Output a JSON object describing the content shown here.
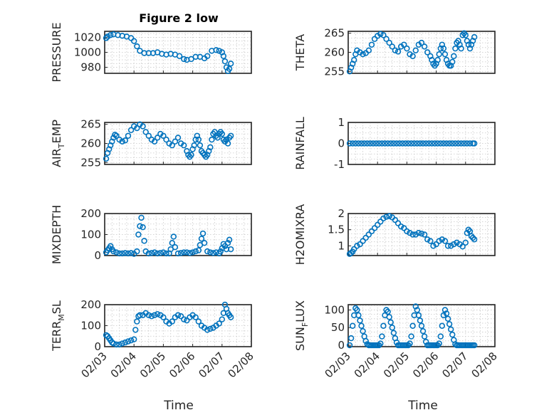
{
  "figure": {
    "title": "Figure 2 low",
    "marker_color": "#0072BD",
    "xlabel": "Time",
    "xtick_labels": [
      "02/03",
      "02/04",
      "02/05",
      "02/06",
      "02/07",
      "02/08"
    ]
  },
  "chart_data": [
    {
      "type": "scatter",
      "ylabel": "PRESSURE",
      "position": "top-left",
      "xlim": [
        3,
        8
      ],
      "ylim": [
        972,
        1028
      ],
      "yticks": [
        980,
        1000,
        1020
      ],
      "x": [
        3.05,
        3.1,
        3.2,
        3.3,
        3.45,
        3.6,
        3.75,
        3.9,
        4.0,
        4.1,
        4.2,
        4.35,
        4.5,
        4.65,
        4.8,
        4.95,
        5.1,
        5.25,
        5.4,
        5.55,
        5.7,
        5.8,
        5.95,
        6.1,
        6.25,
        6.4,
        6.5,
        6.65,
        6.8,
        6.9,
        7.0,
        7.05,
        7.1,
        7.15,
        7.2,
        7.25,
        7.3
      ],
      "y": [
        1019,
        1021,
        1023,
        1024,
        1023,
        1022,
        1021,
        1019,
        1015,
        1008,
        1002,
        999,
        999,
        999,
        1000,
        998,
        997,
        998,
        997,
        995,
        991,
        990,
        991,
        994,
        994,
        992,
        995,
        1002,
        1003,
        1002,
        1000,
        995,
        988,
        980,
        975,
        978,
        985
      ]
    },
    {
      "type": "scatter",
      "ylabel": "THETA",
      "position": "top-right",
      "xlim": [
        3,
        8
      ],
      "ylim": [
        254.5,
        265.5
      ],
      "yticks": [
        255,
        260,
        265
      ],
      "x": [
        3.05,
        3.1,
        3.15,
        3.2,
        3.25,
        3.3,
        3.4,
        3.5,
        3.6,
        3.7,
        3.8,
        3.9,
        4.0,
        4.1,
        4.2,
        4.3,
        4.4,
        4.5,
        4.6,
        4.7,
        4.8,
        4.9,
        5.0,
        5.1,
        5.2,
        5.3,
        5.4,
        5.5,
        5.6,
        5.7,
        5.8,
        5.85,
        5.9,
        5.95,
        6.0,
        6.05,
        6.1,
        6.15,
        6.2,
        6.25,
        6.3,
        6.35,
        6.4,
        6.45,
        6.5,
        6.55,
        6.6,
        6.65,
        6.7,
        6.75,
        6.8,
        6.85,
        6.9,
        6.95,
        7.0,
        7.05,
        7.1,
        7.15,
        7.2,
        7.25,
        7.3
      ],
      "y": [
        255,
        256,
        257,
        258,
        259.5,
        260.5,
        260,
        259.5,
        259.8,
        260.5,
        262,
        263.5,
        264.3,
        264.8,
        264.5,
        263.5,
        262.5,
        261.5,
        260.5,
        260.2,
        261.5,
        262,
        261,
        259.5,
        259,
        260.5,
        262,
        262.5,
        261.5,
        260,
        259,
        258,
        257,
        256.5,
        257,
        258,
        259.5,
        261,
        262,
        261,
        259.5,
        258,
        257,
        256.5,
        256.5,
        257.5,
        259,
        261,
        262.5,
        263,
        262,
        261,
        264.5,
        265,
        264.5,
        263,
        262,
        261,
        262,
        263,
        264
      ]
    },
    {
      "type": "scatter",
      "ylabel": "AIR_T_EMP",
      "position": "middle-upper-left",
      "xlim": [
        3,
        8
      ],
      "ylim": [
        254.5,
        265.5
      ],
      "yticks": [
        255,
        260,
        265
      ],
      "x": [
        3.05,
        3.1,
        3.15,
        3.2,
        3.25,
        3.3,
        3.35,
        3.4,
        3.5,
        3.6,
        3.7,
        3.8,
        3.9,
        4.0,
        4.1,
        4.2,
        4.3,
        4.4,
        4.5,
        4.6,
        4.7,
        4.8,
        4.9,
        5.0,
        5.1,
        5.2,
        5.3,
        5.4,
        5.5,
        5.6,
        5.7,
        5.8,
        5.85,
        5.9,
        5.95,
        6.0,
        6.05,
        6.1,
        6.15,
        6.2,
        6.25,
        6.3,
        6.35,
        6.4,
        6.45,
        6.5,
        6.55,
        6.6,
        6.65,
        6.7,
        6.75,
        6.8,
        6.85,
        6.9,
        6.95,
        7.0,
        7.05,
        7.1,
        7.15,
        7.2,
        7.25,
        7.3
      ],
      "y": [
        256,
        257.5,
        258.5,
        259.5,
        260.5,
        261.5,
        262.3,
        262,
        261,
        260.5,
        260.8,
        262,
        263.5,
        264.5,
        264,
        265,
        264.5,
        263,
        262,
        261,
        260.5,
        261.5,
        262.5,
        262,
        261,
        260,
        259.5,
        260.5,
        261.5,
        260,
        259.5,
        258,
        257,
        256.5,
        257,
        258.5,
        259.5,
        261,
        262,
        261,
        259.5,
        258,
        257.5,
        257,
        256.5,
        257,
        258,
        259,
        261,
        262.5,
        263,
        262,
        261.5,
        262.5,
        263,
        262.5,
        261,
        260.5,
        261,
        260,
        261.5,
        262
      ]
    },
    {
      "type": "scatter",
      "ylabel": "RAINFALL",
      "position": "middle-upper-right",
      "xlim": [
        3,
        8
      ],
      "ylim": [
        -1,
        1
      ],
      "yticks": [
        -1,
        0,
        1
      ],
      "x": [
        3.05,
        3.15,
        3.25,
        3.35,
        3.45,
        3.55,
        3.65,
        3.75,
        3.85,
        3.95,
        4.05,
        4.15,
        4.25,
        4.35,
        4.45,
        4.55,
        4.65,
        4.75,
        4.85,
        4.95,
        5.05,
        5.15,
        5.25,
        5.35,
        5.45,
        5.55,
        5.65,
        5.75,
        5.85,
        5.95,
        6.05,
        6.15,
        6.25,
        6.35,
        6.45,
        6.55,
        6.65,
        6.75,
        6.85,
        6.95,
        7.05,
        7.15,
        7.25,
        7.3
      ],
      "y": [
        0,
        0,
        0,
        0,
        0,
        0,
        0,
        0,
        0,
        0,
        0,
        0,
        0,
        0,
        0,
        0,
        0,
        0,
        0,
        0,
        0,
        0,
        0,
        0,
        0,
        0,
        0,
        0,
        0,
        0,
        0,
        0,
        0,
        0,
        0,
        0,
        0,
        0,
        0,
        0,
        0,
        0,
        0,
        0
      ]
    },
    {
      "type": "scatter",
      "ylabel": "MIXDEPTH",
      "position": "middle-lower-left",
      "xlim": [
        3,
        8
      ],
      "ylim": [
        0,
        200
      ],
      "yticks": [
        0,
        100,
        200
      ],
      "x": [
        3.05,
        3.1,
        3.15,
        3.2,
        3.25,
        3.3,
        3.4,
        3.5,
        3.6,
        3.7,
        3.8,
        3.9,
        4.0,
        4.1,
        4.15,
        4.2,
        4.25,
        4.3,
        4.35,
        4.4,
        4.5,
        4.6,
        4.7,
        4.8,
        4.9,
        5.0,
        5.1,
        5.2,
        5.25,
        5.3,
        5.35,
        5.4,
        5.5,
        5.6,
        5.7,
        5.8,
        5.9,
        6.0,
        6.1,
        6.2,
        6.25,
        6.3,
        6.35,
        6.4,
        6.5,
        6.6,
        6.7,
        6.8,
        6.9,
        6.95,
        7.0,
        7.05,
        7.1,
        7.15,
        7.2,
        7.25,
        7.3
      ],
      "y": [
        15,
        25,
        35,
        45,
        30,
        20,
        15,
        10,
        10,
        12,
        10,
        12,
        8,
        20,
        100,
        140,
        180,
        135,
        70,
        20,
        10,
        12,
        15,
        10,
        12,
        15,
        10,
        10,
        30,
        60,
        90,
        40,
        10,
        12,
        15,
        15,
        12,
        15,
        20,
        25,
        50,
        80,
        105,
        60,
        20,
        15,
        12,
        15,
        10,
        20,
        35,
        55,
        45,
        30,
        60,
        75,
        30
      ]
    },
    {
      "type": "scatter",
      "ylabel": "H2OMIXRA",
      "position": "middle-lower-right",
      "xlim": [
        3,
        8
      ],
      "ylim": [
        0.7,
        2
      ],
      "yticks": [
        1,
        1.5,
        2
      ],
      "x": [
        3.05,
        3.1,
        3.15,
        3.2,
        3.3,
        3.4,
        3.5,
        3.6,
        3.7,
        3.8,
        3.9,
        4.0,
        4.1,
        4.2,
        4.3,
        4.4,
        4.5,
        4.6,
        4.7,
        4.8,
        4.9,
        5.0,
        5.1,
        5.2,
        5.3,
        5.4,
        5.5,
        5.6,
        5.7,
        5.8,
        5.9,
        6.0,
        6.1,
        6.2,
        6.3,
        6.4,
        6.5,
        6.6,
        6.7,
        6.8,
        6.9,
        7.0,
        7.05,
        7.1,
        7.15,
        7.2,
        7.25,
        7.3
      ],
      "y": [
        0.75,
        0.78,
        0.82,
        0.9,
        1.0,
        1.05,
        1.15,
        1.25,
        1.35,
        1.45,
        1.55,
        1.65,
        1.75,
        1.85,
        1.9,
        1.92,
        1.88,
        1.8,
        1.7,
        1.6,
        1.55,
        1.45,
        1.4,
        1.35,
        1.35,
        1.4,
        1.38,
        1.35,
        1.2,
        1.15,
        1.0,
        1.05,
        1.15,
        1.2,
        1.15,
        1.0,
        1.0,
        1.05,
        1.1,
        1.05,
        0.98,
        1.1,
        1.4,
        1.5,
        1.45,
        1.3,
        1.25,
        1.2
      ]
    },
    {
      "type": "scatter",
      "ylabel": "TERR_M_SL",
      "position": "bottom-left",
      "xlim": [
        3,
        8
      ],
      "ylim": [
        0,
        200
      ],
      "yticks": [
        0,
        100,
        200
      ],
      "x": [
        3.05,
        3.1,
        3.15,
        3.2,
        3.25,
        3.3,
        3.4,
        3.5,
        3.6,
        3.7,
        3.8,
        3.9,
        4.0,
        4.05,
        4.1,
        4.15,
        4.2,
        4.3,
        4.4,
        4.5,
        4.6,
        4.7,
        4.8,
        4.9,
        5.0,
        5.1,
        5.2,
        5.3,
        5.4,
        5.5,
        5.6,
        5.7,
        5.8,
        5.9,
        6.0,
        6.1,
        6.2,
        6.3,
        6.4,
        6.5,
        6.6,
        6.7,
        6.8,
        6.9,
        7.0,
        7.05,
        7.1,
        7.15,
        7.2,
        7.25,
        7.3
      ],
      "y": [
        55,
        50,
        40,
        30,
        20,
        15,
        10,
        10,
        15,
        20,
        25,
        30,
        35,
        80,
        120,
        145,
        150,
        150,
        160,
        150,
        145,
        150,
        155,
        150,
        140,
        120,
        110,
        120,
        140,
        150,
        145,
        130,
        125,
        140,
        150,
        140,
        120,
        100,
        90,
        80,
        85,
        90,
        100,
        110,
        130,
        160,
        200,
        180,
        160,
        150,
        140
      ]
    },
    {
      "type": "scatter",
      "ylabel": "SUN_F_LUX",
      "position": "bottom-right",
      "xlim": [
        3,
        8
      ],
      "ylim": [
        -4,
        115
      ],
      "yticks": [
        0,
        50,
        100
      ],
      "x": [
        3.05,
        3.1,
        3.15,
        3.2,
        3.25,
        3.3,
        3.35,
        3.4,
        3.45,
        3.5,
        3.55,
        3.6,
        3.65,
        3.7,
        3.75,
        3.8,
        3.85,
        3.9,
        3.95,
        4.0,
        4.05,
        4.1,
        4.15,
        4.2,
        4.25,
        4.3,
        4.35,
        4.4,
        4.45,
        4.5,
        4.55,
        4.6,
        4.65,
        4.7,
        4.75,
        4.8,
        4.85,
        4.9,
        4.95,
        5.0,
        5.05,
        5.1,
        5.15,
        5.2,
        5.25,
        5.3,
        5.35,
        5.4,
        5.45,
        5.5,
        5.55,
        5.6,
        5.65,
        5.7,
        5.75,
        5.8,
        5.85,
        5.9,
        5.95,
        6.0,
        6.05,
        6.1,
        6.15,
        6.2,
        6.25,
        6.3,
        6.35,
        6.4,
        6.45,
        6.5,
        6.55,
        6.6,
        6.65,
        6.7,
        6.75,
        6.8,
        6.85,
        6.9,
        6.95,
        7.0,
        7.05,
        7.1,
        7.15,
        7.2,
        7.25,
        7.3
      ],
      "y": [
        0,
        20,
        55,
        85,
        105,
        100,
        85,
        70,
        55,
        40,
        25,
        12,
        3,
        0,
        0,
        0,
        0,
        0,
        0,
        0,
        0,
        5,
        25,
        55,
        85,
        100,
        95,
        80,
        65,
        50,
        35,
        20,
        8,
        0,
        0,
        0,
        0,
        0,
        0,
        0,
        0,
        5,
        25,
        55,
        85,
        110,
        100,
        85,
        70,
        55,
        40,
        25,
        10,
        0,
        0,
        0,
        0,
        0,
        0,
        0,
        0,
        5,
        25,
        55,
        85,
        100,
        90,
        75,
        60,
        45,
        30,
        15,
        3,
        0,
        0,
        0,
        0,
        0,
        0,
        0,
        0,
        0,
        0,
        0,
        0,
        0
      ]
    }
  ]
}
